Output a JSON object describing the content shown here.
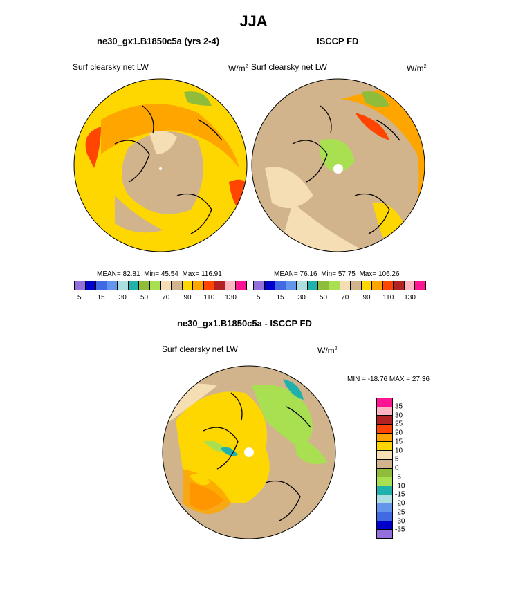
{
  "title": "JJA",
  "panels": [
    {
      "title": "ne30_gx1.B1850c5a (yrs 2-4)",
      "variable": "Surf clearsky net LW",
      "unit": "W/m",
      "unit_sup": "2",
      "stats": {
        "mean_label": "MEAN=",
        "mean": "82.81",
        "min_label": "Min=",
        "min": "45.54",
        "max_label": "Max=",
        "max": "116.91"
      }
    },
    {
      "title": "ISCCP FD",
      "variable": "Surf clearsky net LW",
      "unit": "W/m",
      "unit_sup": "2",
      "stats": {
        "mean_label": "MEAN=",
        "mean": "76.16",
        "min_label": "Min=",
        "min": "57.75",
        "max_label": "Max=",
        "max": "106.26"
      }
    },
    {
      "title": "ne30_gx1.B1850c5a - ISCCP FD",
      "variable": "Surf clearsky net LW",
      "unit": "W/m",
      "unit_sup": "2",
      "minmax": "MIN = -18.76 MAX =  27.36"
    }
  ],
  "abs_colorbar": {
    "colors": [
      "#9370db",
      "#0000cd",
      "#4169e1",
      "#6495ed",
      "#aedfe0",
      "#20b2aa",
      "#8fbc3a",
      "#a8e052",
      "#f5deb3",
      "#d2b48c",
      "#ffd700",
      "#ffa500",
      "#ff4500",
      "#b22222",
      "#ffb6c1",
      "#ff1493"
    ],
    "tick_labels": [
      "5",
      "15",
      "30",
      "50",
      "70",
      "90",
      "110",
      "130"
    ]
  },
  "diff_colorbar": {
    "colors": [
      "#ff1493",
      "#ffb6c1",
      "#b22222",
      "#ff4500",
      "#ffa500",
      "#ffd700",
      "#f5deb3",
      "#d2b48c",
      "#8fbc3a",
      "#a8e052",
      "#20b2aa",
      "#aedfe0",
      "#6495ed",
      "#4169e1",
      "#0000cd",
      "#9370db"
    ],
    "tick_labels": [
      "35",
      "30",
      "25",
      "20",
      "15",
      "10",
      "5",
      "0",
      "-5",
      "-10",
      "-15",
      "-20",
      "-25",
      "-30",
      "-35"
    ]
  },
  "map_colors": {
    "deep_orange": "#ff6a1a",
    "orange": "#ffa500",
    "yellow": "#ffd700",
    "tan": "#d2b48c",
    "wheat": "#f5deb3",
    "green": "#8fbc3a",
    "light_green": "#a8e052",
    "teal": "#20b2aa",
    "pole": "#ffffff"
  }
}
